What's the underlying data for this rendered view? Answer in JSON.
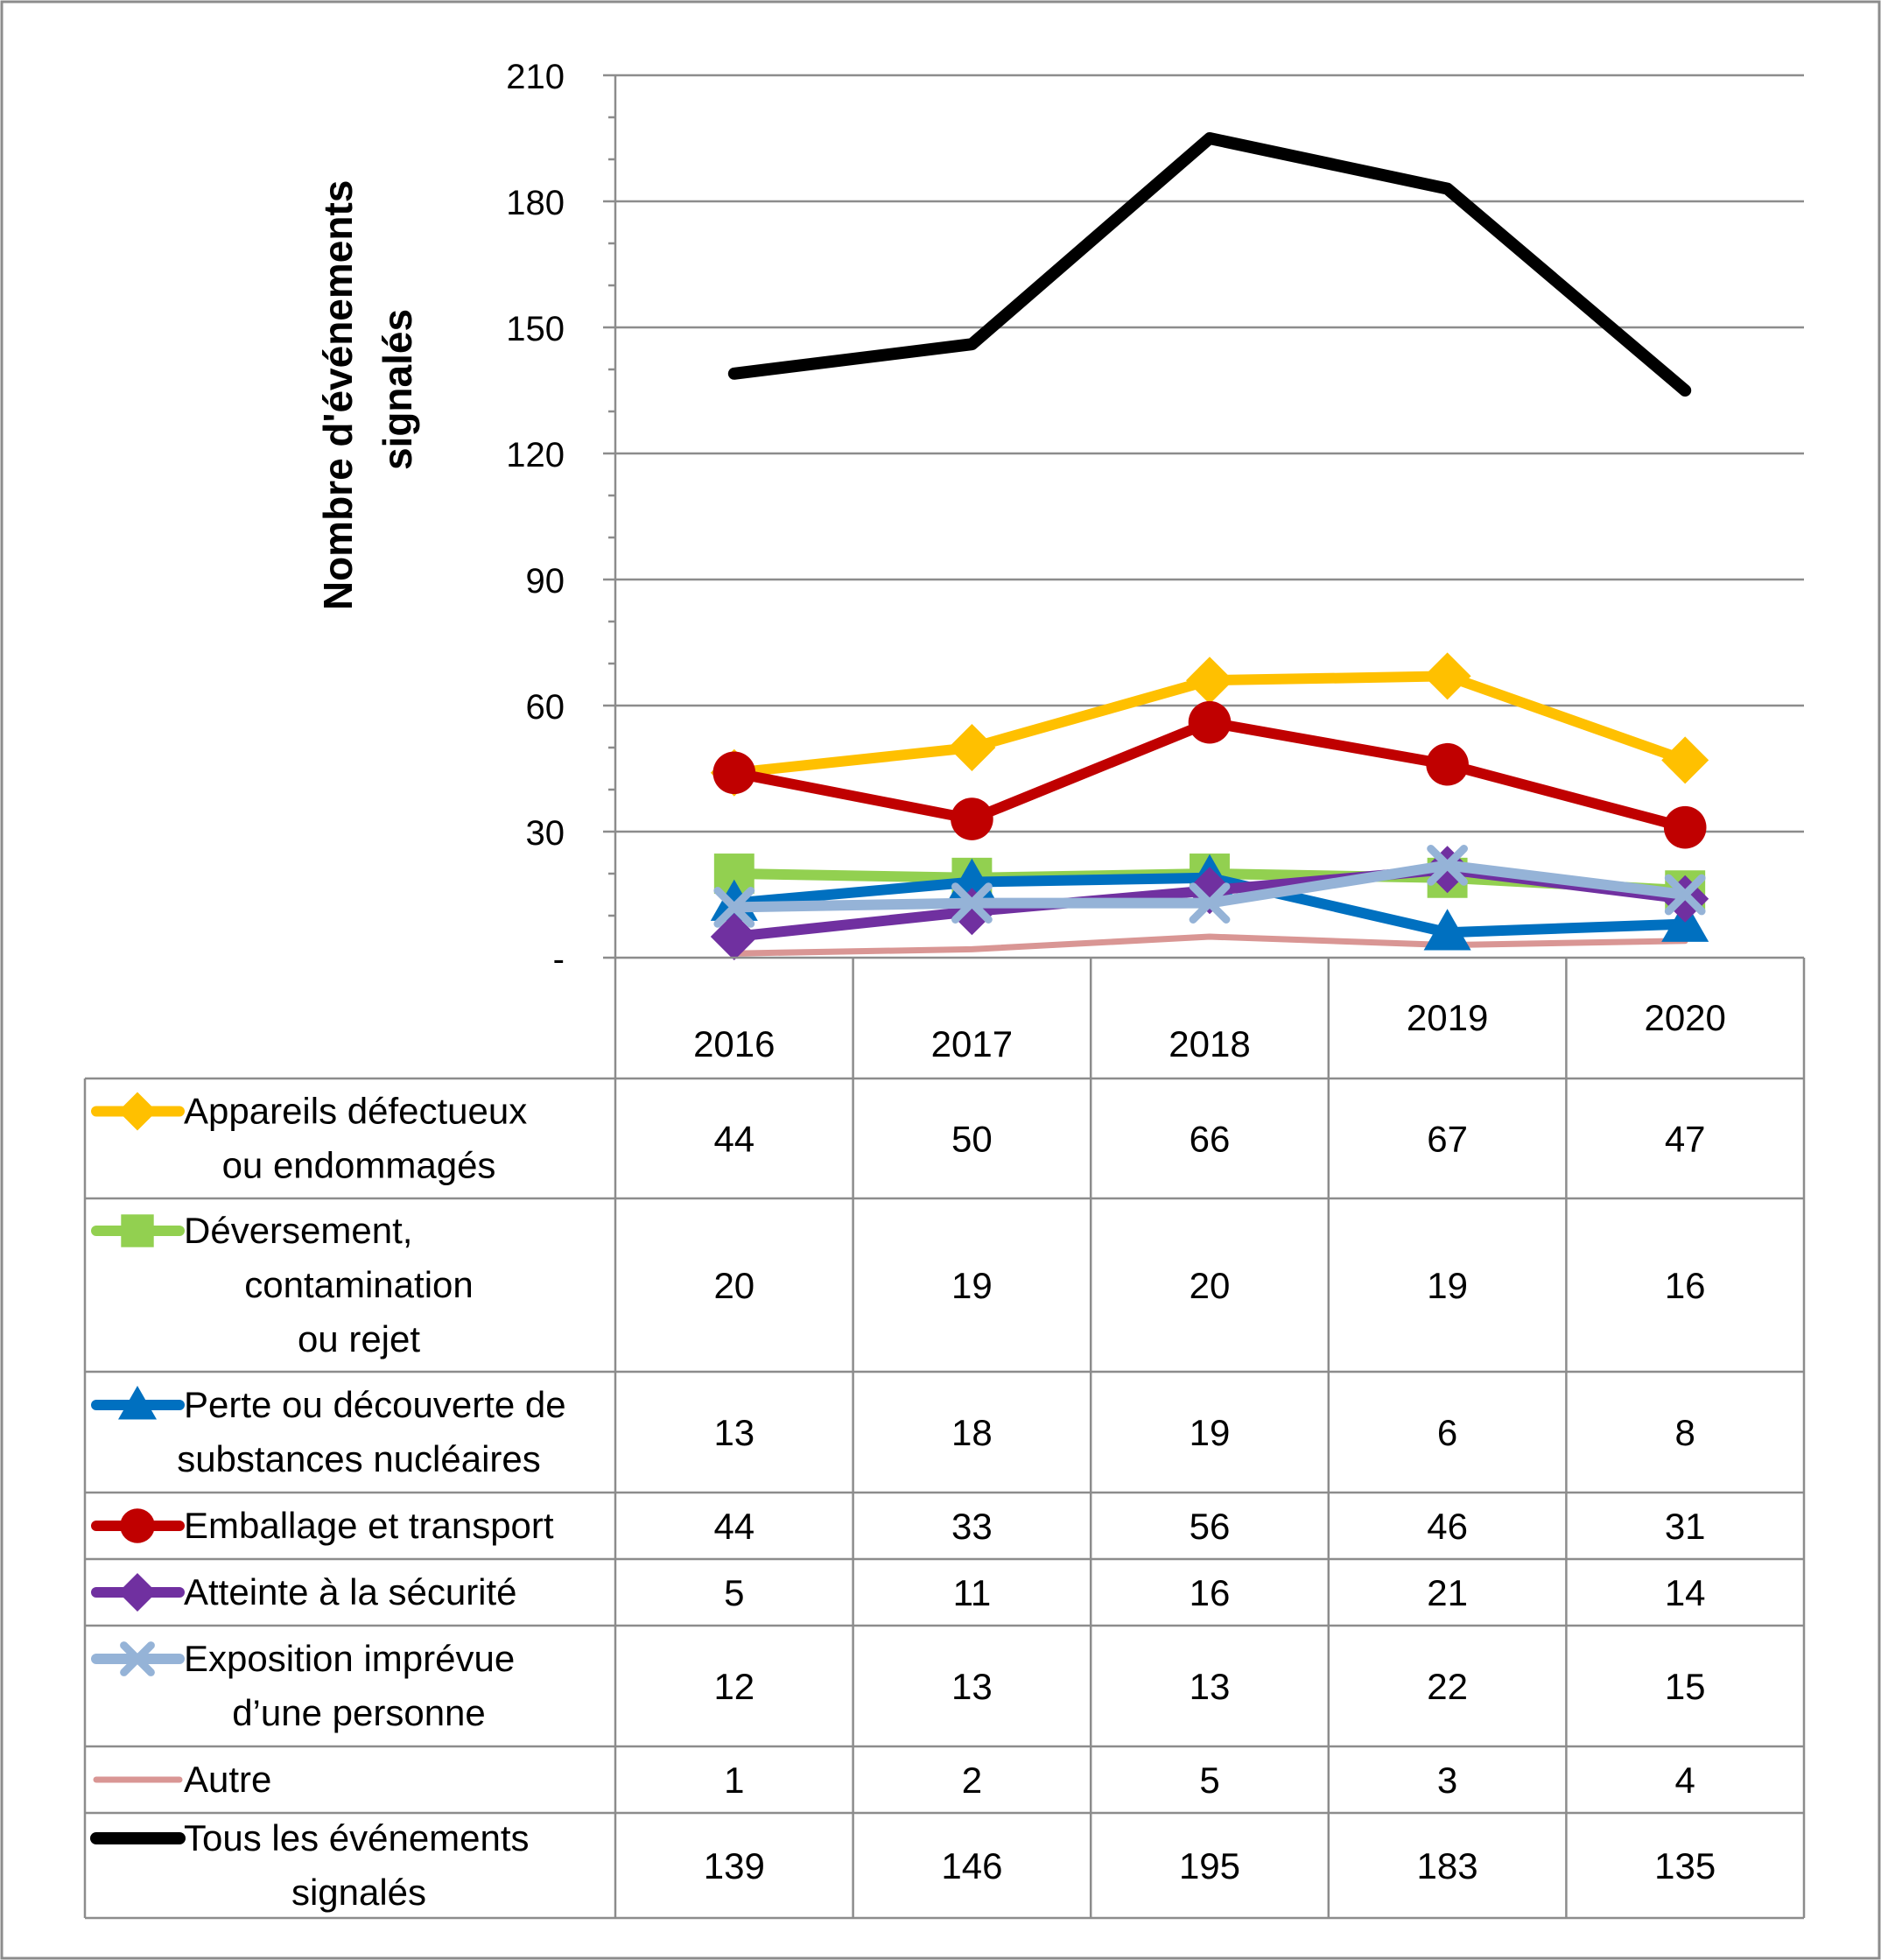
{
  "chart_data": {
    "type": "line",
    "title": "",
    "xlabel": "",
    "ylabel": "Nombre d'événements signalés",
    "ylabel_lines": [
      "Nombre d'événements",
      "signalés"
    ],
    "categories": [
      "2016",
      "2017",
      "2018",
      "2019",
      "2020"
    ],
    "ylim": [
      0,
      210
    ],
    "yticks": [
      {
        "value": 0,
        "label": "-"
      },
      {
        "value": 30,
        "label": "30"
      },
      {
        "value": 60,
        "label": "60"
      },
      {
        "value": 90,
        "label": "90"
      },
      {
        "value": 120,
        "label": "120"
      },
      {
        "value": 150,
        "label": "150"
      },
      {
        "value": 180,
        "label": "180"
      },
      {
        "value": 210,
        "label": "210"
      }
    ],
    "grid": true,
    "legend_placement": "data table below the chart",
    "series": [
      {
        "name": "Appareils défectueux ou endommagés",
        "label_lines": [
          "Appareils défectueux",
          "ou endommagés"
        ],
        "values": [
          44,
          50,
          66,
          67,
          47
        ],
        "color": "#FFC000",
        "marker": "diamond"
      },
      {
        "name": "Déversement, contamination ou rejet",
        "label_lines": [
          "Déversement,",
          "contamination",
          "ou rejet"
        ],
        "values": [
          20,
          19,
          20,
          19,
          16
        ],
        "color": "#92D050",
        "marker": "square"
      },
      {
        "name": "Perte ou découverte de substances nucléaires",
        "label_lines": [
          "Perte ou découverte de",
          "substances nucléaires"
        ],
        "values": [
          13,
          18,
          19,
          6,
          8
        ],
        "color": "#0070C0",
        "marker": "triangle"
      },
      {
        "name": "Emballage et transport",
        "label_lines": [
          "Emballage et transport"
        ],
        "values": [
          44,
          33,
          56,
          46,
          31
        ],
        "color": "#C00000",
        "marker": "circle"
      },
      {
        "name": "Atteinte à la sécurité",
        "label_lines": [
          "Atteinte à la sécurité"
        ],
        "values": [
          5,
          11,
          16,
          21,
          14
        ],
        "color": "#7030A0",
        "marker": "diamond"
      },
      {
        "name": "Exposition imprévue d’une personne",
        "label_lines": [
          "Exposition imprévue",
          "d’une personne"
        ],
        "values": [
          12,
          13,
          13,
          22,
          15
        ],
        "color": "#95B3D7",
        "marker": "x"
      },
      {
        "name": "Autre",
        "label_lines": [
          "Autre"
        ],
        "values": [
          1,
          2,
          5,
          3,
          4
        ],
        "color": "#D99694",
        "marker": "none"
      },
      {
        "name": "Tous les événements signalés",
        "label_lines": [
          "Tous les événements",
          "signalés"
        ],
        "values": [
          139,
          146,
          195,
          183,
          135
        ],
        "color": "#000000",
        "marker": "none"
      }
    ]
  }
}
